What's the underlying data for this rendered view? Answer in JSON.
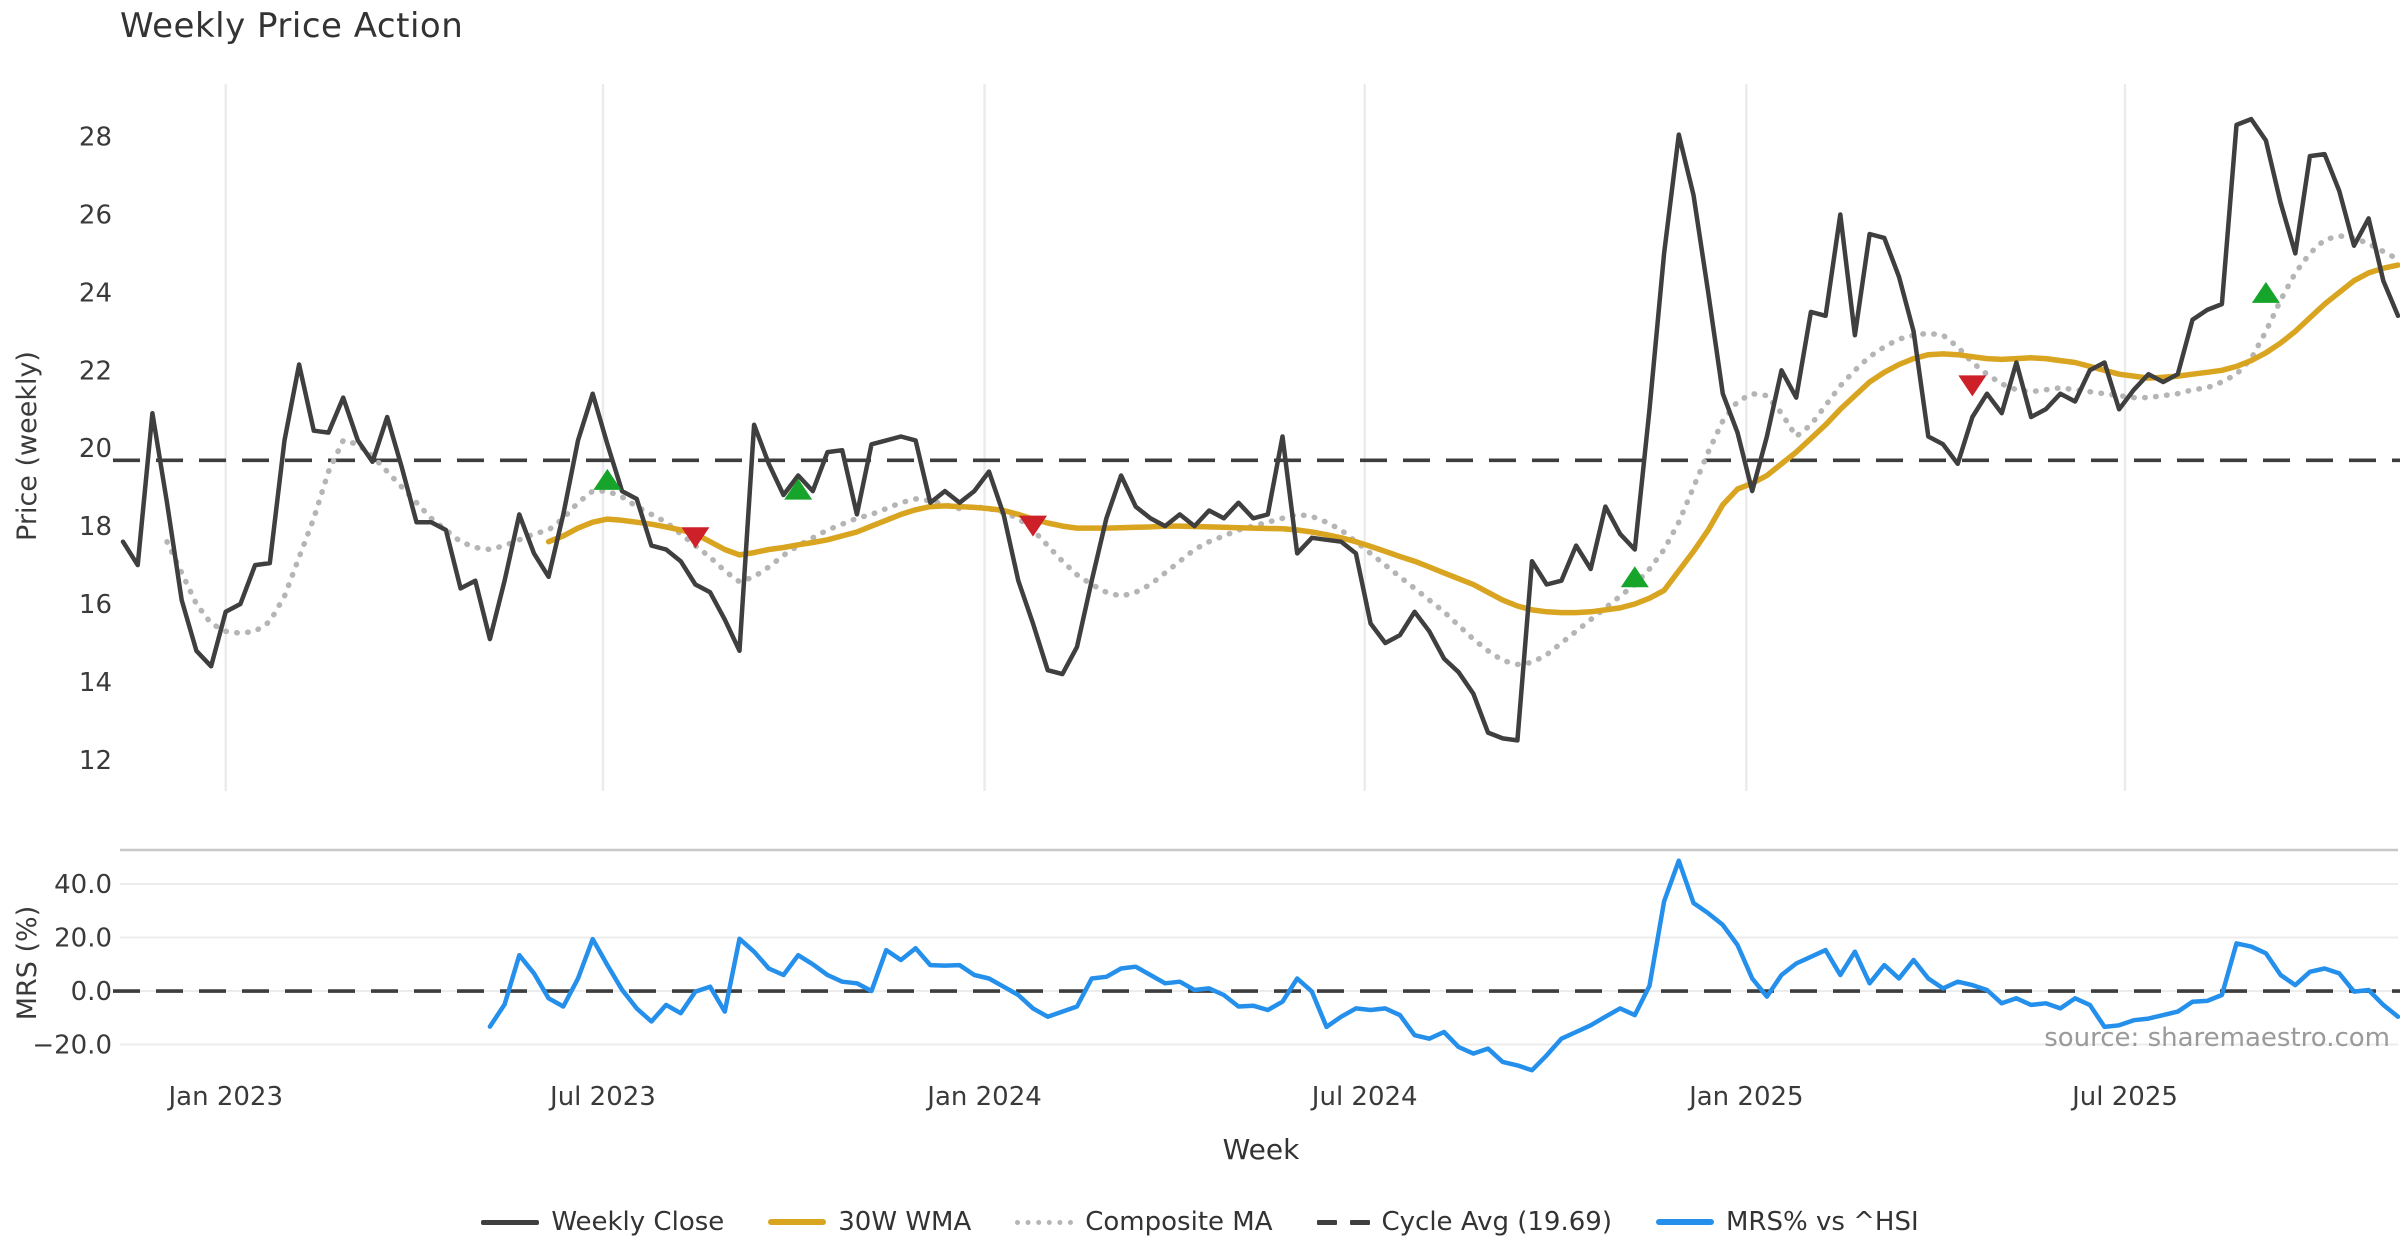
{
  "title": "Weekly Price Action",
  "source": "source: sharemaestro.com",
  "colors": {
    "weekly_close": "#3f3f3f",
    "wma30": "#D9A521",
    "composite_ma": "#b5b5b5",
    "cycle_avg": "#3d3d3d",
    "mrs": "#2590EB",
    "buy_marker": "#17A42A",
    "sell_marker": "#CE2029",
    "grid_vertical": "#e8ecef",
    "grid_horizontal": "#ececec",
    "panel_spine": "#c8c8c8",
    "tick_text": "#3a3a3a"
  },
  "legend": [
    {
      "key": "weekly_close",
      "label": "Weekly Close",
      "style": "solid-dark"
    },
    {
      "key": "wma30",
      "label": "30W WMA",
      "style": "solid-gold"
    },
    {
      "key": "composite_ma",
      "label": "Composite MA",
      "style": "dotted"
    },
    {
      "key": "cycle_avg",
      "label": "Cycle Avg (19.69)",
      "style": "dashed"
    },
    {
      "key": "mrs",
      "label": "MRS% vs ^HSI",
      "style": "solid-blue"
    }
  ],
  "chart_data": {
    "type": "line",
    "title": "Weekly Price Action",
    "xlabel": "Week",
    "x_unit": "week_index_from_2022-11-13",
    "x_range_weeks": [
      0,
      155
    ],
    "x_tick_positions": [
      7.0,
      32.7,
      58.7,
      84.6,
      110.6,
      136.4
    ],
    "x_tick_labels": [
      "Jan 2023",
      "Jul 2023",
      "Jan 2024",
      "Jul 2024",
      "Jan 2025",
      "Jul 2025"
    ],
    "grid": {
      "price_panel": "vertical-only",
      "mrs_panel": "horizontal-only"
    },
    "legend_position": "bottom-center",
    "panels": [
      {
        "name": "price",
        "ylabel": "Price (weekly)",
        "ylim": [
          11.2,
          29.35
        ],
        "yticks": [
          28,
          26,
          24,
          22,
          20,
          18,
          16,
          14,
          12
        ],
        "cycle_avg": 19.69,
        "series": [
          {
            "name": "Weekly Close",
            "color_key": "weekly_close",
            "line": "solid",
            "width": 4.5,
            "start_week": 0,
            "values": [
              17.6,
              17.0,
              20.9,
              18.6,
              16.1,
              14.8,
              14.4,
              15.8,
              16.0,
              17.0,
              17.05,
              20.2,
              22.15,
              20.45,
              20.4,
              21.3,
              20.2,
              19.65,
              20.8,
              19.5,
              18.1,
              18.1,
              17.9,
              16.4,
              16.6,
              15.1,
              16.6,
              18.3,
              17.3,
              16.7,
              18.3,
              20.2,
              21.4,
              20.1,
              18.9,
              18.7,
              17.5,
              17.4,
              17.1,
              16.5,
              16.3,
              15.6,
              14.8,
              20.6,
              19.6,
              18.8,
              19.3,
              18.9,
              19.9,
              19.95,
              18.3,
              20.1,
              20.2,
              20.3,
              20.2,
              18.6,
              18.9,
              18.6,
              18.9,
              19.4,
              18.3,
              16.6,
              15.5,
              14.3,
              14.2,
              14.9,
              16.6,
              18.2,
              19.3,
              18.5,
              18.2,
              18.0,
              18.3,
              18.0,
              18.4,
              18.2,
              18.6,
              18.2,
              18.3,
              20.3,
              17.3,
              17.7,
              17.65,
              17.6,
              17.3,
              15.5,
              15.0,
              15.2,
              15.8,
              15.3,
              14.6,
              14.25,
              13.7,
              12.7,
              12.55,
              12.5,
              17.1,
              16.5,
              16.6,
              17.5,
              16.9,
              18.5,
              17.8,
              17.4,
              21.0,
              25.0,
              28.05,
              26.5,
              24.0,
              21.4,
              20.4,
              18.9,
              20.3,
              22.0,
              21.3,
              23.5,
              23.4,
              26.0,
              22.9,
              25.5,
              25.4,
              24.4,
              23.0,
              20.3,
              20.1,
              19.6,
              20.8,
              21.4,
              20.9,
              22.2,
              20.8,
              21.0,
              21.4,
              21.2,
              22.0,
              22.2,
              21.0,
              21.5,
              21.9,
              21.7,
              21.9,
              23.3,
              23.55,
              23.7,
              28.3,
              28.45,
              27.9,
              26.3,
              25.0,
              27.5,
              27.55,
              26.6,
              25.2,
              25.9,
              24.3,
              23.4
            ]
          },
          {
            "name": "30W WMA",
            "color_key": "wma30",
            "line": "solid",
            "width": 5.5,
            "start_week": 29,
            "values": [
              17.6,
              17.75,
              17.95,
              18.1,
              18.18,
              18.15,
              18.1,
              18.05,
              17.98,
              17.9,
              17.8,
              17.6,
              17.4,
              17.26,
              17.32,
              17.4,
              17.45,
              17.52,
              17.58,
              17.65,
              17.75,
              17.85,
              18.0,
              18.15,
              18.3,
              18.42,
              18.5,
              18.52,
              18.5,
              18.48,
              18.45,
              18.4,
              18.3,
              18.18,
              18.08,
              18.0,
              17.95,
              17.95,
              17.95,
              17.96,
              17.97,
              17.98,
              18.0,
              18.0,
              17.99,
              17.98,
              17.97,
              17.96,
              17.95,
              17.94,
              17.93,
              17.9,
              17.85,
              17.78,
              17.7,
              17.6,
              17.48,
              17.35,
              17.22,
              17.1,
              16.95,
              16.8,
              16.65,
              16.5,
              16.3,
              16.1,
              15.95,
              15.85,
              15.8,
              15.78,
              15.78,
              15.8,
              15.85,
              15.9,
              16.0,
              16.15,
              16.35,
              16.85,
              17.35,
              17.9,
              18.55,
              18.95,
              19.1,
              19.3,
              19.6,
              19.9,
              20.25,
              20.6,
              21.0,
              21.35,
              21.7,
              21.95,
              22.15,
              22.3,
              22.4,
              22.42,
              22.4,
              22.35,
              22.3,
              22.28,
              22.3,
              22.32,
              22.3,
              22.25,
              22.2,
              22.1,
              22.0,
              21.9,
              21.85,
              21.8,
              21.82,
              21.85,
              21.9,
              21.95,
              22.0,
              22.1,
              22.25,
              22.45,
              22.7,
              23.0,
              23.35,
              23.7,
              24.0,
              24.3,
              24.5,
              24.62,
              24.7
            ]
          },
          {
            "name": "Composite MA",
            "color_key": "composite_ma",
            "line": "dotted",
            "width": 4.5,
            "start_week": 3,
            "values": [
              17.6,
              16.8,
              16.0,
              15.5,
              15.3,
              15.25,
              15.3,
              15.55,
              16.2,
              17.2,
              18.2,
              19.4,
              20.2,
              20.1,
              19.8,
              19.4,
              19.0,
              18.6,
              18.2,
              17.9,
              17.6,
              17.45,
              17.4,
              17.5,
              17.65,
              17.8,
              17.9,
              18.2,
              18.6,
              18.9,
              18.9,
              18.75,
              18.5,
              18.3,
              18.1,
              17.8,
              17.5,
              17.2,
              16.85,
              16.57,
              16.7,
              16.95,
              17.25,
              17.5,
              17.7,
              17.9,
              18.05,
              18.2,
              18.3,
              18.45,
              18.6,
              18.7,
              18.65,
              18.55,
              18.45,
              18.5,
              18.45,
              18.35,
              18.2,
              17.9,
              17.5,
              17.1,
              16.75,
              16.5,
              16.3,
              16.2,
              16.3,
              16.5,
              16.8,
              17.1,
              17.4,
              17.6,
              17.75,
              17.9,
              18.0,
              18.1,
              18.2,
              18.3,
              18.25,
              18.1,
              17.9,
              17.6,
              17.3,
              17.0,
              16.7,
              16.4,
              16.1,
              15.8,
              15.45,
              15.1,
              14.8,
              14.55,
              14.45,
              14.5,
              14.7,
              15.0,
              15.3,
              15.6,
              15.9,
              16.2,
              16.5,
              16.9,
              17.4,
              18.1,
              19.0,
              19.9,
              20.7,
              21.2,
              21.4,
              21.35,
              20.9,
              20.3,
              20.6,
              21.1,
              21.6,
              22.0,
              22.35,
              22.6,
              22.8,
              22.9,
              22.95,
              22.9,
              22.6,
              22.2,
              21.9,
              21.65,
              21.5,
              21.45,
              21.5,
              21.55,
              21.5,
              21.45,
              21.4,
              21.35,
              21.3,
              21.3,
              21.35,
              21.4,
              21.5,
              21.55,
              21.7,
              21.9,
              22.3,
              23.0,
              23.8,
              24.5,
              25.0,
              25.35,
              25.45,
              25.4,
              25.25,
              25.05,
              24.85
            ]
          }
        ],
        "markers": {
          "buy": [
            {
              "week": 33,
              "value": 19.2
            },
            {
              "week": 46,
              "value": 18.95
            },
            {
              "week": 103,
              "value": 16.7
            },
            {
              "week": 146,
              "value": 24.0
            }
          ],
          "sell": [
            {
              "week": 39,
              "value": 17.7
            },
            {
              "week": 62,
              "value": 18.0
            },
            {
              "week": 126,
              "value": 21.6
            }
          ]
        }
      },
      {
        "name": "mrs",
        "ylabel": "MRS (%)",
        "ylim": [
          -32.5,
          52.7
        ],
        "yticks": [
          40,
          20,
          0,
          -20
        ],
        "ytick_labels": [
          "40.0",
          "20.0",
          "0.0",
          "−20.0"
        ],
        "zero_line": 0,
        "series": [
          {
            "name": "MRS% vs ^HSI",
            "color_key": "mrs",
            "line": "solid",
            "width": 4.5,
            "start_week": 25,
            "values": [
              -13.3,
              -5.0,
              13.4,
              6.6,
              -2.7,
              -5.8,
              4.7,
              19.4,
              9.7,
              0.5,
              -6.5,
              -11.4,
              -5.2,
              -8.3,
              -0.2,
              1.6,
              -7.7,
              19.5,
              14.7,
              8.4,
              6.0,
              13.4,
              10.0,
              6.0,
              3.5,
              2.9,
              0.0,
              15.3,
              11.6,
              16.0,
              9.7,
              9.5,
              9.7,
              6.0,
              4.7,
              1.6,
              -1.5,
              -6.5,
              -9.6,
              -7.7,
              -5.8,
              4.7,
              5.3,
              8.4,
              9.1,
              6.0,
              2.9,
              3.5,
              0.4,
              1.0,
              -1.5,
              -5.8,
              -5.5,
              -7.1,
              -4.0,
              4.7,
              -0.2,
              -13.4,
              -9.6,
              -6.5,
              -7.1,
              -6.5,
              -9.0,
              -16.5,
              -17.8,
              -15.3,
              -20.9,
              -23.4,
              -21.5,
              -26.5,
              -27.8,
              -29.6,
              -24.0,
              -17.8,
              -15.3,
              -12.8,
              -9.6,
              -6.5,
              -9.0,
              2.0,
              33.5,
              48.7,
              32.9,
              29.1,
              24.7,
              17.2,
              4.7,
              -2.1,
              6.0,
              10.3,
              12.8,
              15.3,
              6.0,
              14.7,
              2.9,
              9.7,
              4.7,
              11.6,
              4.7,
              1.0,
              3.5,
              2.2,
              0.4,
              -4.6,
              -2.7,
              -5.2,
              -4.6,
              -6.5,
              -2.7,
              -5.2,
              -13.4,
              -12.8,
              -10.9,
              -10.3,
              -9.0,
              -7.7,
              -4.0,
              -3.7,
              -1.5,
              17.8,
              16.6,
              14.1,
              6.0,
              2.2,
              7.2,
              8.4,
              6.6,
              -0.2,
              0.4,
              -5.2,
              -9.6
            ]
          }
        ]
      }
    ]
  }
}
